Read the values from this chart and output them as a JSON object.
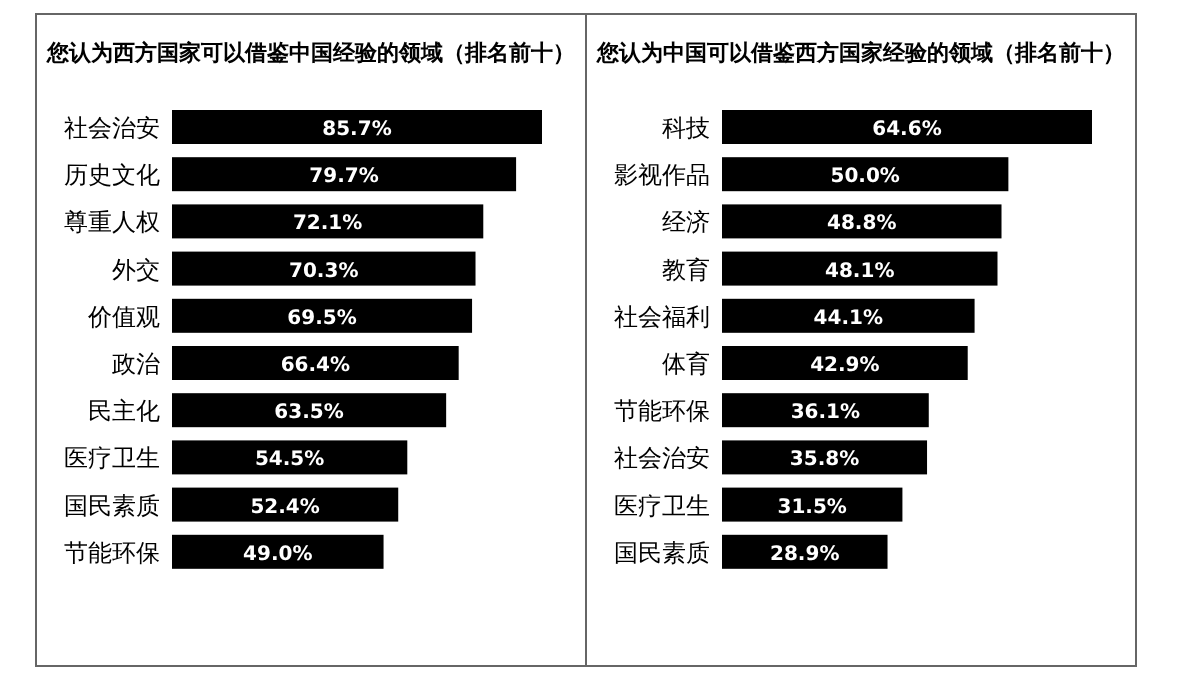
{
  "chart_data": [
    {
      "type": "bar",
      "orientation": "horizontal",
      "title": "您认为西方国家可以借鉴中国经验的领域（排名前十）",
      "categories": [
        "社会治安",
        "历史文化",
        "尊重人权",
        "外交",
        "价值观",
        "政治",
        "民主化",
        "医疗卫生",
        "国民素质",
        "节能环保"
      ],
      "values": [
        85.7,
        79.7,
        72.1,
        70.3,
        69.5,
        66.4,
        63.5,
        54.5,
        52.4,
        49.0
      ],
      "value_labels": [
        "85.7%",
        "79.7%",
        "72.1%",
        "70.3%",
        "69.5%",
        "66.4%",
        "63.5%",
        "54.5%",
        "52.4%",
        "49.0%"
      ],
      "color": "#000000"
    },
    {
      "type": "bar",
      "orientation": "horizontal",
      "title": "您认为中国可以借鉴西方国家经验的领域（排名前十）",
      "categories": [
        "科技",
        "影视作品",
        "经济",
        "教育",
        "社会福利",
        "体育",
        "节能环保",
        "社会治安",
        "医疗卫生",
        "国民素质"
      ],
      "values": [
        64.6,
        50.0,
        48.8,
        48.1,
        44.1,
        42.9,
        36.1,
        35.8,
        31.5,
        28.9
      ],
      "value_labels": [
        "64.6%",
        "50.0%",
        "48.8%",
        "48.1%",
        "44.1%",
        "42.9%",
        "36.1%",
        "35.8%",
        "31.5%",
        "28.9%"
      ],
      "color": "#000000"
    }
  ]
}
